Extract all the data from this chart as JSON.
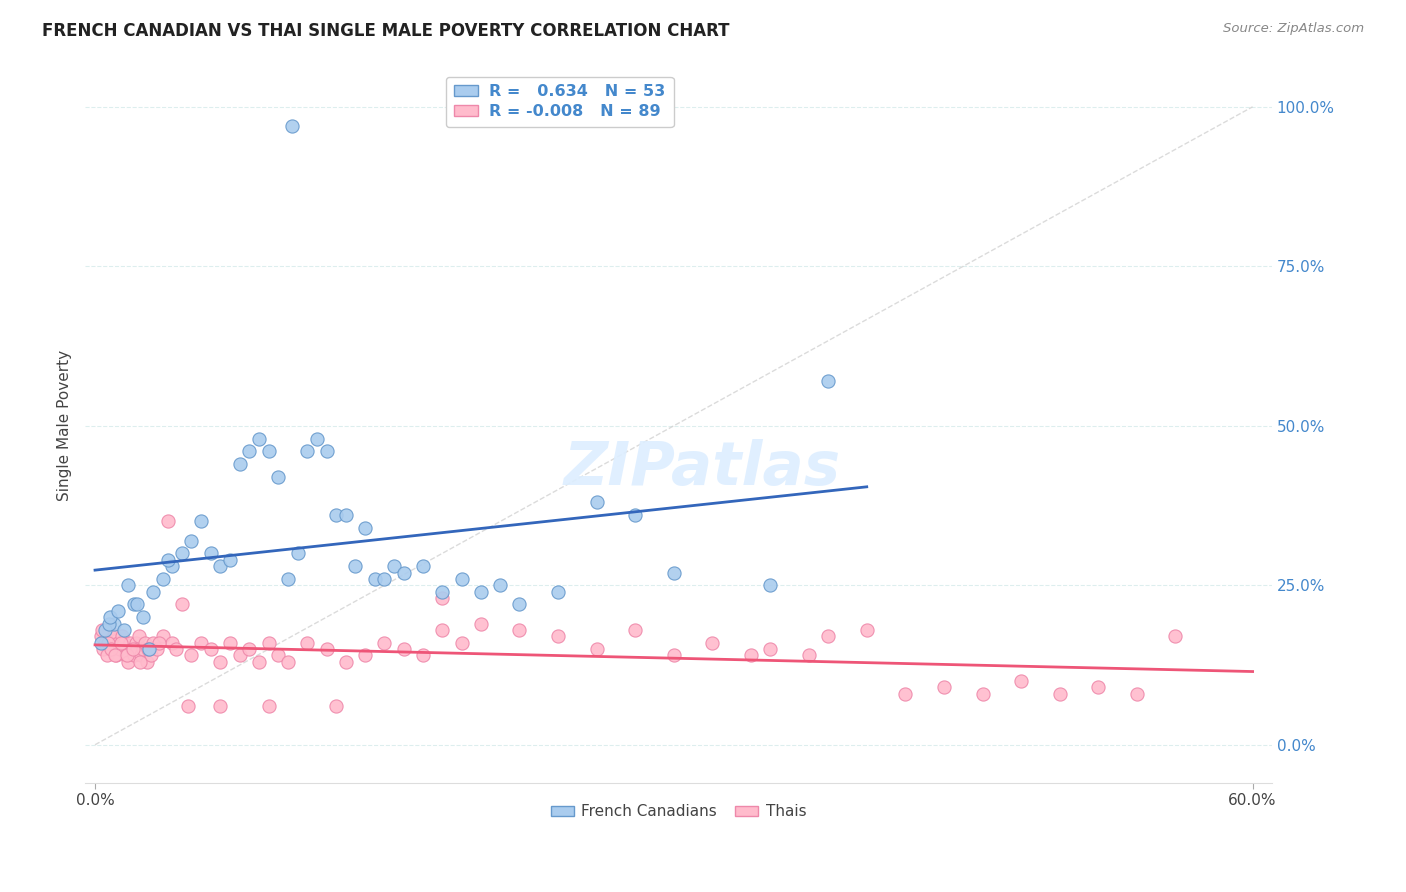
{
  "title": "FRENCH CANADIAN VS THAI SINGLE MALE POVERTY CORRELATION CHART",
  "source": "Source: ZipAtlas.com",
  "ylabel": "Single Male Poverty",
  "ytick_vals": [
    0,
    25,
    50,
    75,
    100
  ],
  "ytick_labels": [
    "0.0%",
    "25.0%",
    "50.0%",
    "75.0%",
    "100.0%"
  ],
  "xtick_vals": [
    0,
    60
  ],
  "xtick_labels": [
    "0.0%",
    "60.0%"
  ],
  "xlim": [
    0,
    60
  ],
  "ylim": [
    0,
    100
  ],
  "blue_face": "#AACCEE",
  "blue_edge": "#6699CC",
  "pink_face": "#FFBBCC",
  "pink_edge": "#EE88AA",
  "blue_line": "#3366BB",
  "pink_line": "#EE5577",
  "diag_color": "#CCCCCC",
  "grid_color": "#DDEEEE",
  "legend_text_color": "#4488CC",
  "right_tick_color": "#4488CC",
  "watermark_color": "#DDEEFF",
  "fc_x": [
    1.0,
    1.5,
    2.0,
    2.5,
    3.0,
    3.5,
    4.0,
    4.5,
    5.0,
    5.5,
    6.0,
    6.5,
    7.0,
    7.5,
    8.0,
    8.5,
    9.0,
    9.5,
    10.0,
    10.5,
    11.0,
    11.5,
    12.0,
    12.5,
    13.0,
    13.5,
    14.0,
    14.5,
    15.0,
    15.5,
    16.0,
    17.0,
    18.0,
    19.0,
    20.0,
    21.0,
    22.0,
    24.0,
    26.0,
    28.0,
    30.0,
    35.0,
    38.0,
    0.3,
    0.5,
    0.7,
    0.8,
    1.2,
    1.7,
    2.2,
    2.8,
    3.8,
    10.2
  ],
  "fc_y": [
    19,
    18,
    22,
    20,
    24,
    26,
    28,
    30,
    32,
    35,
    30,
    28,
    29,
    44,
    46,
    48,
    46,
    42,
    26,
    30,
    46,
    48,
    46,
    36,
    36,
    28,
    34,
    26,
    26,
    28,
    27,
    28,
    24,
    26,
    24,
    25,
    22,
    24,
    38,
    36,
    27,
    25,
    57,
    16,
    18,
    19,
    20,
    21,
    25,
    22,
    15,
    29,
    97
  ],
  "th_x": [
    0.3,
    0.4,
    0.5,
    0.6,
    0.7,
    0.8,
    0.9,
    1.0,
    1.1,
    1.2,
    1.3,
    1.4,
    1.5,
    1.6,
    1.7,
    1.8,
    1.9,
    2.0,
    2.1,
    2.2,
    2.3,
    2.4,
    2.5,
    2.6,
    2.7,
    2.8,
    2.9,
    3.0,
    3.2,
    3.5,
    3.8,
    4.0,
    4.2,
    4.5,
    5.0,
    5.5,
    6.0,
    6.5,
    7.0,
    7.5,
    8.0,
    8.5,
    9.0,
    9.5,
    10.0,
    11.0,
    12.0,
    13.0,
    14.0,
    15.0,
    16.0,
    17.0,
    18.0,
    19.0,
    20.0,
    22.0,
    24.0,
    26.0,
    28.0,
    30.0,
    32.0,
    34.0,
    35.0,
    37.0,
    38.0,
    40.0,
    42.0,
    44.0,
    46.0,
    48.0,
    50.0,
    52.0,
    54.0,
    56.0,
    0.35,
    0.65,
    0.85,
    1.05,
    1.35,
    1.65,
    1.95,
    2.35,
    2.75,
    3.3,
    4.8,
    6.5,
    9.0,
    12.5,
    18.0
  ],
  "th_y": [
    17,
    15,
    16,
    14,
    18,
    16,
    15,
    17,
    14,
    16,
    15,
    17,
    16,
    14,
    13,
    16,
    15,
    14,
    16,
    15,
    17,
    14,
    15,
    16,
    13,
    15,
    14,
    16,
    15,
    17,
    35,
    16,
    15,
    22,
    14,
    16,
    15,
    13,
    16,
    14,
    15,
    13,
    16,
    14,
    13,
    16,
    15,
    13,
    14,
    16,
    15,
    14,
    18,
    16,
    19,
    18,
    17,
    15,
    18,
    14,
    16,
    14,
    15,
    14,
    17,
    18,
    8,
    9,
    8,
    10,
    8,
    9,
    8,
    17,
    18,
    16,
    15,
    14,
    16,
    14,
    15,
    13,
    15,
    16,
    6,
    6,
    6,
    6,
    23
  ]
}
